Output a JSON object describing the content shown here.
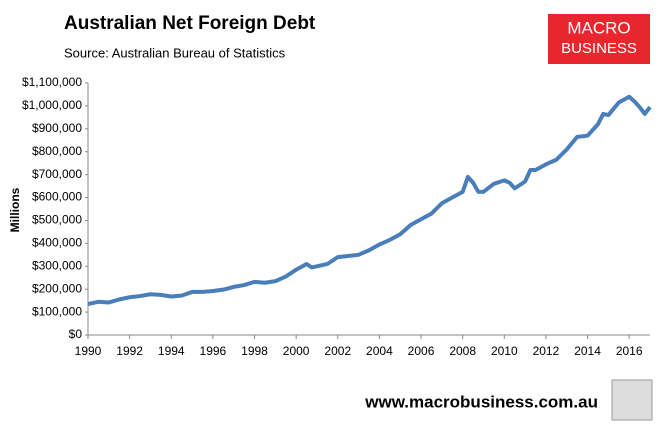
{
  "header": {
    "title": "Australian Net Foreign Debt",
    "source": "Source:  Australian Bureau of Statistics",
    "logo": [
      "MACRO",
      "BUSINESS"
    ]
  },
  "footer": {
    "url": "www.macrobusiness.com.au"
  },
  "chart_data": {
    "type": "line",
    "y_label": "Millions",
    "color": "#4a7ebb",
    "grid": false,
    "x": [
      1990,
      1990.5,
      1991,
      1991.5,
      1992,
      1992.5,
      1993,
      1993.5,
      1994,
      1994.5,
      1995,
      1995.5,
      1996,
      1996.5,
      1997,
      1997.5,
      1998,
      1998.5,
      1999,
      1999.5,
      2000,
      2000.5,
      2000.75,
      2001,
      2001.5,
      2002,
      2002.5,
      2003,
      2003.5,
      2004,
      2004.5,
      2005,
      2005.5,
      2006,
      2006.5,
      2007,
      2007.5,
      2008,
      2008.25,
      2008.5,
      2008.75,
      2009,
      2009.5,
      2010,
      2010.25,
      2010.5,
      2011,
      2011.25,
      2011.5,
      2012,
      2012.5,
      2013,
      2013.5,
      2014,
      2014.5,
      2014.75,
      2015,
      2015.5,
      2016,
      2016.25,
      2016.5,
      2016.75,
      2017
    ],
    "values": [
      135000,
      145000,
      142000,
      155000,
      165000,
      170000,
      178000,
      175000,
      168000,
      172000,
      188000,
      188000,
      192000,
      198000,
      210000,
      218000,
      232000,
      228000,
      235000,
      255000,
      285000,
      310000,
      295000,
      300000,
      310000,
      340000,
      345000,
      350000,
      370000,
      395000,
      415000,
      440000,
      480000,
      505000,
      530000,
      575000,
      600000,
      625000,
      690000,
      665000,
      625000,
      625000,
      660000,
      675000,
      665000,
      640000,
      670000,
      720000,
      720000,
      745000,
      765000,
      810000,
      865000,
      870000,
      920000,
      965000,
      960000,
      1015000,
      1040000,
      1020000,
      995000,
      965000,
      995000
    ],
    "xlim": [
      1990,
      2017
    ],
    "xticks": [
      1990,
      1992,
      1994,
      1996,
      1998,
      2000,
      2002,
      2004,
      2006,
      2008,
      2010,
      2012,
      2014,
      2016
    ],
    "ylim": [
      0,
      1100000
    ],
    "yticks": [
      {
        "value": 0,
        "label": "$0"
      },
      {
        "value": 100000,
        "label": "$100,000"
      },
      {
        "value": 200000,
        "label": "$200,000"
      },
      {
        "value": 300000,
        "label": "$300,000"
      },
      {
        "value": 400000,
        "label": "$400,000"
      },
      {
        "value": 500000,
        "label": "$500,000"
      },
      {
        "value": 600000,
        "label": "$600,000"
      },
      {
        "value": 700000,
        "label": "$700,000"
      },
      {
        "value": 800000,
        "label": "$800,000"
      },
      {
        "value": 900000,
        "label": "$900,000"
      },
      {
        "value": 1000000,
        "label": "$1,000,000"
      },
      {
        "value": 1100000,
        "label": "$1,100,000"
      }
    ]
  }
}
